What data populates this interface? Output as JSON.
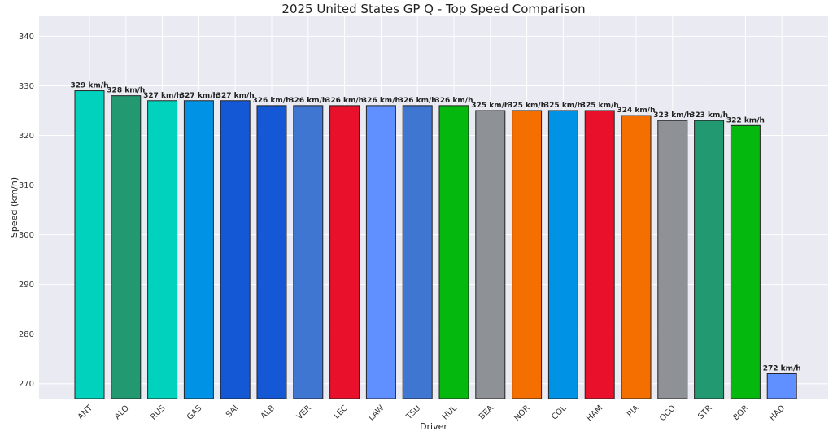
{
  "chart_data": {
    "type": "bar",
    "title": "2025 United States GP Q - Top Speed Comparison",
    "xlabel": "Driver",
    "ylabel": "Speed (km/h)",
    "ylim": [
      267,
      344
    ],
    "yticks": [
      270,
      280,
      290,
      300,
      310,
      320,
      330,
      340
    ],
    "grid": true,
    "categories": [
      "ANT",
      "ALO",
      "RUS",
      "GAS",
      "SAI",
      "ALB",
      "VER",
      "LEC",
      "LAW",
      "TSU",
      "HUL",
      "BEA",
      "NOR",
      "COL",
      "HAM",
      "PIA",
      "OCO",
      "STR",
      "BOR",
      "HAD"
    ],
    "values": [
      329,
      328,
      327,
      327,
      327,
      326,
      326,
      326,
      326,
      326,
      326,
      325,
      325,
      325,
      325,
      324,
      323,
      323,
      322,
      272
    ],
    "labels": [
      "329 km/h",
      "328 km/h",
      "327 km/h",
      "327 km/h",
      "327 km/h",
      "326 km/h",
      "326 km/h",
      "326 km/h",
      "326 km/h",
      "326 km/h",
      "326 km/h",
      "325 km/h",
      "325 km/h",
      "325 km/h",
      "325 km/h",
      "324 km/h",
      "323 km/h",
      "323 km/h",
      "322 km/h",
      "272 km/h"
    ],
    "colors": [
      "#00D2BE",
      "#229971",
      "#00D2BE",
      "#0093E5",
      "#1558D6",
      "#1558D6",
      "#3F76D2",
      "#E8102A",
      "#6090FF",
      "#3F76D2",
      "#05B80E",
      "#8E9196",
      "#F56F00",
      "#0093E5",
      "#E8102A",
      "#F56F00",
      "#8E9196",
      "#229971",
      "#05B80E",
      "#6090FF"
    ],
    "plot_background": "#EAEAF2",
    "bar_edge_color": "#222222"
  }
}
